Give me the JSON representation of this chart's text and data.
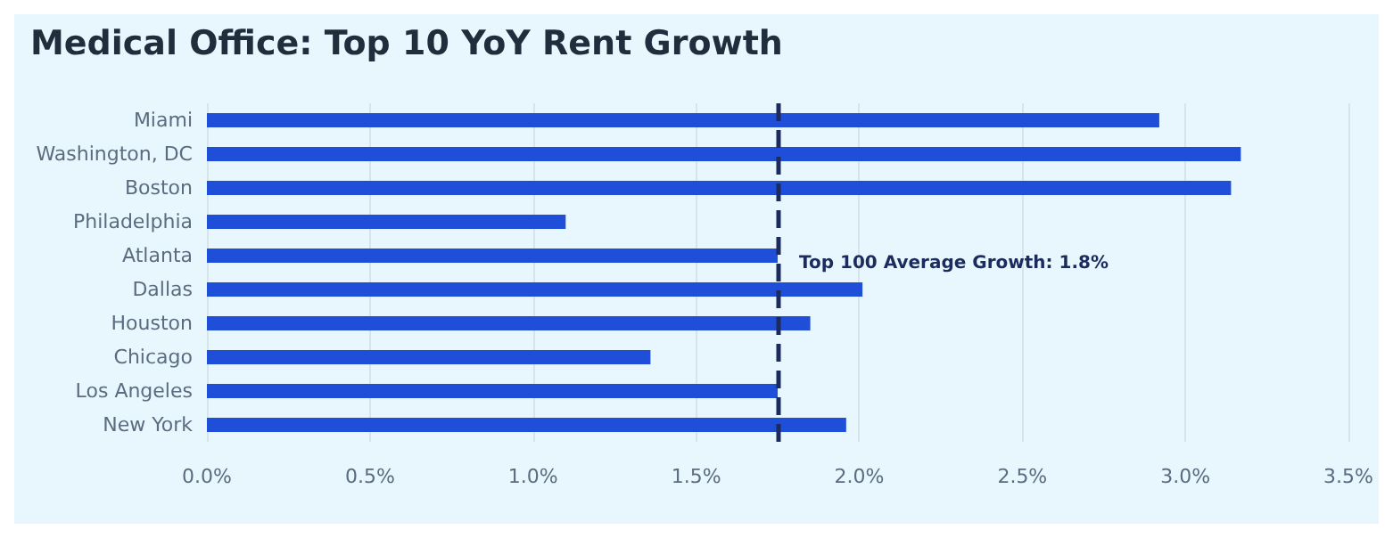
{
  "chart_data": {
    "type": "bar",
    "orientation": "horizontal",
    "title": "Medical Office: Top 10 YoY Rent Growth",
    "categories": [
      "Miami",
      "Washington, DC",
      "Boston",
      "Philadelphia",
      "Atlanta",
      "Dallas",
      "Houston",
      "Chicago",
      "Los Angeles",
      "New York"
    ],
    "values": [
      2.92,
      3.17,
      3.14,
      1.1,
      1.75,
      2.01,
      1.85,
      1.36,
      1.75,
      1.96
    ],
    "color": "#1f4ed8",
    "xlim": [
      0,
      3.5
    ],
    "xticks": [
      {
        "value": 0,
        "label": "0.0%"
      },
      {
        "value": 0.5,
        "label": "0.5%"
      },
      {
        "value": 1,
        "label": "1.0%"
      },
      {
        "value": 1.5,
        "label": "1.5%"
      },
      {
        "value": 2,
        "label": "2.0%"
      },
      {
        "value": 2.5,
        "label": "2.5%"
      },
      {
        "value": 3,
        "label": "3.0%"
      },
      {
        "value": 3.5,
        "label": "3.5%"
      }
    ],
    "ref_lines": [
      {
        "axis": "x",
        "value": 1.75,
        "label": "Top 100 Average Growth: 1.8%",
        "color": "#1b2b5e",
        "line_style": "dashed"
      }
    ],
    "grid": "x"
  }
}
